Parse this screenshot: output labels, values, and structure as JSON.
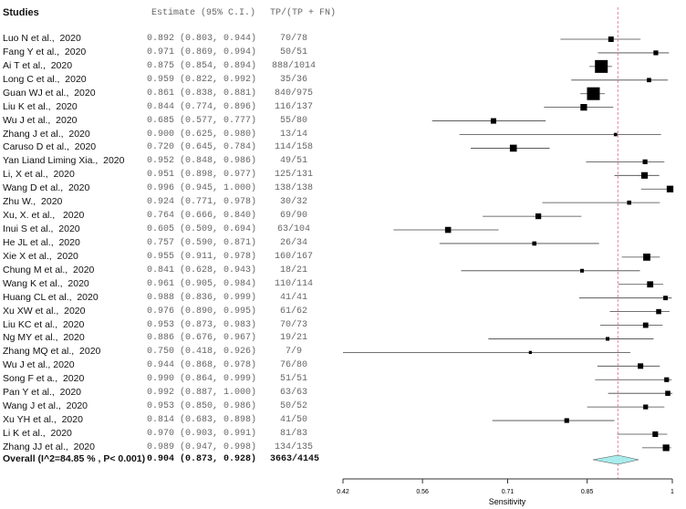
{
  "chart_data": {
    "type": "forest",
    "headers": {
      "studies": "Studies",
      "estimate": "Estimate (95% C.I.)",
      "counts": "TP/(TP + FN)"
    },
    "studies": [
      {
        "name": "Luo N et al.,  2020",
        "est": 0.892,
        "lo": 0.803,
        "hi": 0.944,
        "ci_text": "0.892 (0.803, 0.944)",
        "counts": "70/78",
        "n": 78
      },
      {
        "name": "Fang Y et al.,  2020",
        "est": 0.971,
        "lo": 0.869,
        "hi": 0.994,
        "ci_text": "0.971 (0.869, 0.994)",
        "counts": "50/51",
        "n": 51
      },
      {
        "name": "Ai T et al.,  2020",
        "est": 0.875,
        "lo": 0.854,
        "hi": 0.894,
        "ci_text": "0.875 (0.854, 0.894)",
        "counts": "888/1014",
        "n": 1014
      },
      {
        "name": "Long C et al.,  2020",
        "est": 0.959,
        "lo": 0.822,
        "hi": 0.992,
        "ci_text": "0.959 (0.822, 0.992)",
        "counts": "35/36",
        "n": 36
      },
      {
        "name": "Guan WJ et al.,  2020",
        "est": 0.861,
        "lo": 0.838,
        "hi": 0.881,
        "ci_text": "0.861 (0.838, 0.881)",
        "counts": "840/975",
        "n": 975
      },
      {
        "name": "Liu K et al.,  2020",
        "est": 0.844,
        "lo": 0.774,
        "hi": 0.896,
        "ci_text": "0.844 (0.774, 0.896)",
        "counts": "116/137",
        "n": 137
      },
      {
        "name": "Wu J et al.,  2020",
        "est": 0.685,
        "lo": 0.577,
        "hi": 0.777,
        "ci_text": "0.685 (0.577, 0.777)",
        "counts": "55/80",
        "n": 80
      },
      {
        "name": "Zhang J et al.,  2020",
        "est": 0.9,
        "lo": 0.625,
        "hi": 0.98,
        "ci_text": "0.900 (0.625, 0.980)",
        "counts": "13/14",
        "n": 14
      },
      {
        "name": "Caruso D et al.,  2020",
        "est": 0.72,
        "lo": 0.645,
        "hi": 0.784,
        "ci_text": "0.720 (0.645, 0.784)",
        "counts": "114/158",
        "n": 158
      },
      {
        "name": "Yan Liand Liming Xia.,  2020",
        "est": 0.952,
        "lo": 0.848,
        "hi": 0.986,
        "ci_text": "0.952 (0.848, 0.986)",
        "counts": "49/51",
        "n": 51
      },
      {
        "name": "Li, X et al.,  2020",
        "est": 0.951,
        "lo": 0.898,
        "hi": 0.977,
        "ci_text": "0.951 (0.898, 0.977)",
        "counts": "125/131",
        "n": 131
      },
      {
        "name": "Wang D et al.,  2020",
        "est": 0.996,
        "lo": 0.945,
        "hi": 1.0,
        "ci_text": "0.996 (0.945, 1.000)",
        "counts": "138/138",
        "n": 138
      },
      {
        "name": "Zhu W.,  2020",
        "est": 0.924,
        "lo": 0.771,
        "hi": 0.978,
        "ci_text": "0.924 (0.771, 0.978)",
        "counts": "30/32",
        "n": 32
      },
      {
        "name": "Xu, X. et al.,   2020",
        "est": 0.764,
        "lo": 0.666,
        "hi": 0.84,
        "ci_text": "0.764 (0.666, 0.840)",
        "counts": "69/90",
        "n": 90
      },
      {
        "name": "Inui S et al.,  2020",
        "est": 0.605,
        "lo": 0.509,
        "hi": 0.694,
        "ci_text": "0.605 (0.509, 0.694)",
        "counts": "63/104",
        "n": 104
      },
      {
        "name": "He JL et al.,  2020",
        "est": 0.757,
        "lo": 0.59,
        "hi": 0.871,
        "ci_text": "0.757 (0.590, 0.871)",
        "counts": "26/34",
        "n": 34
      },
      {
        "name": "Xie X et al.,  2020",
        "est": 0.955,
        "lo": 0.911,
        "hi": 0.978,
        "ci_text": "0.955 (0.911, 0.978)",
        "counts": "160/167",
        "n": 167
      },
      {
        "name": "Chung M et al.,  2020",
        "est": 0.841,
        "lo": 0.628,
        "hi": 0.943,
        "ci_text": "0.841 (0.628, 0.943)",
        "counts": "18/21",
        "n": 21
      },
      {
        "name": "Wang K et al.,  2020",
        "est": 0.961,
        "lo": 0.905,
        "hi": 0.984,
        "ci_text": "0.961 (0.905, 0.984)",
        "counts": "110/114",
        "n": 114
      },
      {
        "name": "Huang CL et al.,  2020",
        "est": 0.988,
        "lo": 0.836,
        "hi": 0.999,
        "ci_text": "0.988 (0.836, 0.999)",
        "counts": "41/41",
        "n": 41
      },
      {
        "name": "Xu XW et al.,  2020",
        "est": 0.976,
        "lo": 0.89,
        "hi": 0.995,
        "ci_text": "0.976 (0.890, 0.995)",
        "counts": "61/62",
        "n": 62
      },
      {
        "name": "Liu KC et al.,  2020",
        "est": 0.953,
        "lo": 0.873,
        "hi": 0.983,
        "ci_text": "0.953 (0.873, 0.983)",
        "counts": "70/73",
        "n": 73
      },
      {
        "name": "Ng MY et al.,  2020",
        "est": 0.886,
        "lo": 0.676,
        "hi": 0.967,
        "ci_text": "0.886 (0.676, 0.967)",
        "counts": "19/21",
        "n": 21
      },
      {
        "name": "Zhang MQ et al.,  2020",
        "est": 0.75,
        "lo": 0.418,
        "hi": 0.926,
        "ci_text": "0.750 (0.418, 0.926)",
        "counts": "7/9",
        "n": 9
      },
      {
        "name": "Wu J et al., 2020",
        "est": 0.944,
        "lo": 0.868,
        "hi": 0.978,
        "ci_text": "0.944 (0.868, 0.978)",
        "counts": "76/80",
        "n": 80
      },
      {
        "name": "Song F et a.,  2020",
        "est": 0.99,
        "lo": 0.864,
        "hi": 0.999,
        "ci_text": "0.990 (0.864, 0.999)",
        "counts": "51/51",
        "n": 51
      },
      {
        "name": "Pan Y et al.,  2020",
        "est": 0.992,
        "lo": 0.887,
        "hi": 1.0,
        "ci_text": "0.992 (0.887, 1.000)",
        "counts": "63/63",
        "n": 63
      },
      {
        "name": "Wang J et al.,  2020",
        "est": 0.953,
        "lo": 0.85,
        "hi": 0.986,
        "ci_text": "0.953 (0.850, 0.986)",
        "counts": "50/52",
        "n": 52
      },
      {
        "name": "Xu YH et al.,  2020",
        "est": 0.814,
        "lo": 0.683,
        "hi": 0.898,
        "ci_text": "0.814 (0.683, 0.898)",
        "counts": "41/50",
        "n": 50
      },
      {
        "name": "Li K et al.,  2020",
        "est": 0.97,
        "lo": 0.903,
        "hi": 0.991,
        "ci_text": "0.970 (0.903, 0.991)",
        "counts": "81/83",
        "n": 83
      },
      {
        "name": "Zhang JJ et al.,  2020",
        "est": 0.989,
        "lo": 0.947,
        "hi": 0.998,
        "ci_text": "0.989 (0.947, 0.998)",
        "counts": "134/135",
        "n": 135
      }
    ],
    "overall": {
      "name": "Overall (I^2=84.85 % , P< 0.001)",
      "est": 0.904,
      "lo": 0.873,
      "hi": 0.928,
      "ci_text": "0.904 (0.873, 0.928)",
      "counts": "3663/4145"
    },
    "xlabel": "Sensitivity",
    "xlim": [
      0.42,
      1
    ],
    "xticks": [
      "0.42",
      "0.56",
      "0.71",
      "0.85",
      "1"
    ],
    "colors": {
      "diamond": "#a8ecec",
      "refline": "#e0609a",
      "marks": "#000000"
    }
  }
}
